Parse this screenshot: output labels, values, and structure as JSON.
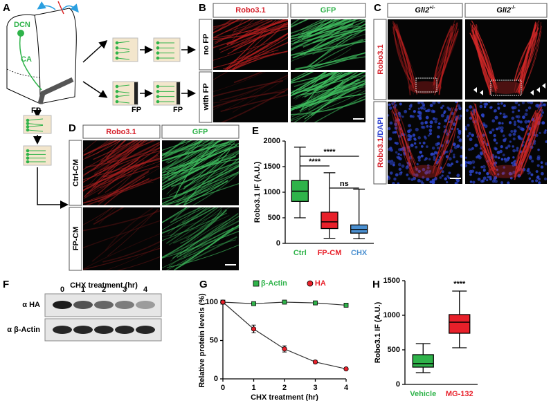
{
  "panel_labels": [
    "A",
    "B",
    "C",
    "D",
    "E",
    "F",
    "G",
    "H"
  ],
  "panel_a": {
    "labels": [
      "DCN",
      "CA",
      "FP",
      "FP",
      "FP"
    ]
  },
  "panel_b": {
    "columns": [
      "Robo3.1",
      "GFP"
    ],
    "rows": [
      "no FP",
      "with FP"
    ]
  },
  "panel_c": {
    "columns": [
      {
        "gene": "Gli2",
        "genotype": "+/-"
      },
      {
        "gene": "Gli2",
        "genotype": "-/-"
      }
    ],
    "rows": [
      [
        "Robo3.1"
      ],
      [
        "Robo3.1",
        "/DAPI"
      ]
    ]
  },
  "panel_d": {
    "columns": [
      "Robo3.1",
      "GFP"
    ],
    "rows": [
      "Ctrl-CM",
      "FP-CM"
    ]
  },
  "panel_f": {
    "title": "CHX treatment (hr)",
    "lanes": [
      "0",
      "1",
      "2",
      "3",
      "4"
    ],
    "rows": [
      "α HA",
      "α β-Actin"
    ]
  },
  "chart_data": [
    {
      "type": "box",
      "ylabel": "Robo3.1 IF (A.U.)",
      "categories": [
        "Ctrl",
        "FP-CM",
        "CHX"
      ],
      "colors": [
        "#2fb34a",
        "#e8202a",
        "#4a8fd0"
      ],
      "boxes": [
        {
          "min": 500,
          "q1": 820,
          "median": 1020,
          "q3": 1230,
          "max": 1880
        },
        {
          "min": 100,
          "q1": 290,
          "median": 420,
          "q3": 610,
          "max": 1380
        },
        {
          "min": 90,
          "q1": 200,
          "median": 270,
          "q3": 360,
          "max": 1060
        }
      ],
      "ylim": [
        0,
        2000
      ],
      "yticks": [
        0,
        500,
        1000,
        1500,
        2000
      ],
      "annotations": [
        {
          "text": "****",
          "between": [
            "Ctrl",
            "CHX"
          ]
        },
        {
          "text": "****",
          "between": [
            "Ctrl",
            "FP-CM"
          ]
        },
        {
          "text": "ns",
          "between": [
            "FP-CM",
            "CHX"
          ]
        }
      ]
    },
    {
      "type": "line",
      "xlabel": "CHX treatment (hr)",
      "ylabel": "Relative protein levels (%)",
      "x": [
        0,
        1,
        2,
        3,
        4
      ],
      "xlim": [
        0,
        4
      ],
      "xticks": [
        0,
        1,
        2,
        3,
        4
      ],
      "ylim": [
        0,
        100
      ],
      "yticks": [
        0,
        50,
        100
      ],
      "line_color": "#333333",
      "series": [
        {
          "name": "β-Actin",
          "color": "#2fb34a",
          "marker": "square",
          "values": [
            100,
            98,
            100,
            99,
            96
          ]
        },
        {
          "name": "HA",
          "color": "#e8202a",
          "marker": "circle",
          "values": [
            100,
            65,
            39,
            22,
            13
          ],
          "errors": [
            0,
            5,
            4,
            2,
            1
          ]
        }
      ]
    },
    {
      "type": "box",
      "ylabel": "Robo3.1 IF (A.U.)",
      "categories": [
        "Vehicle",
        "MG-132"
      ],
      "colors": [
        "#2fb34a",
        "#e8202a"
      ],
      "boxes": [
        {
          "min": 170,
          "q1": 250,
          "median": 300,
          "q3": 430,
          "max": 590
        },
        {
          "min": 530,
          "q1": 740,
          "median": 900,
          "q3": 1010,
          "max": 1350
        }
      ],
      "ylim": [
        0,
        1500
      ],
      "yticks": [
        0,
        500,
        1000,
        1500
      ],
      "annotations": [
        {
          "text": "****",
          "above": "MG-132"
        }
      ]
    }
  ]
}
